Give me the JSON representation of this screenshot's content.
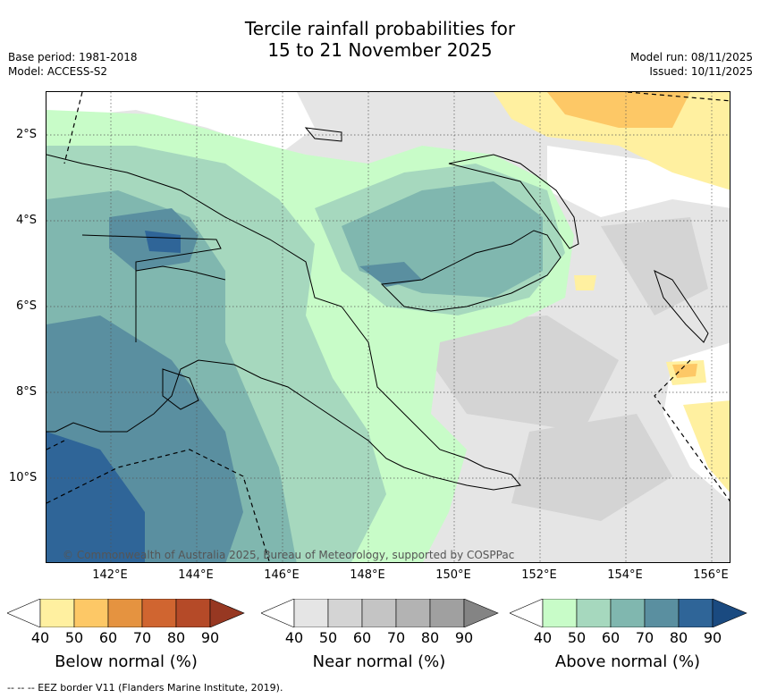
{
  "title_line1": "Tercile rainfall probabilities for",
  "title_line2": "15 to 21 November 2025",
  "base_period": "Base period: 1981-2018",
  "model": "Model: ACCESS-S2",
  "model_run": "Model run: 08/11/2025",
  "issued": "Issued: 10/11/2025",
  "lat_labels": [
    "2°S",
    "4°S",
    "6°S",
    "8°S",
    "10°S"
  ],
  "lon_labels": [
    "142°E",
    "144°E",
    "146°E",
    "148°E",
    "150°E",
    "152°E",
    "154°E",
    "156°E"
  ],
  "copyright": "© Commonwealth of Australia 2025, Bureau of Meteorology, supported by COSPPac",
  "legends": {
    "below": {
      "title": "Below normal (%)",
      "ticks": [
        "40",
        "50",
        "60",
        "70",
        "80",
        "90"
      ],
      "colors": [
        "#ffffff",
        "#fff0a0",
        "#fdc866",
        "#e59340",
        "#d06530",
        "#b54a28",
        "#973822"
      ]
    },
    "near": {
      "title": "Near normal (%)",
      "ticks": [
        "40",
        "50",
        "60",
        "70",
        "80",
        "90"
      ],
      "colors": [
        "#ffffff",
        "#e5e5e5",
        "#d4d4d4",
        "#c4c4c4",
        "#b3b3b3",
        "#a0a0a0",
        "#848484"
      ]
    },
    "above": {
      "title": "Above normal (%)",
      "ticks": [
        "40",
        "50",
        "60",
        "70",
        "80",
        "90"
      ],
      "colors": [
        "#ffffff",
        "#c8fcc8",
        "#a6d8be",
        "#80b7af",
        "#5a8fa0",
        "#2f6598",
        "#1a4a80"
      ]
    }
  },
  "footer": "-- -- -- EEZ border V11 (Flanders Marine Institute, 2019)."
}
